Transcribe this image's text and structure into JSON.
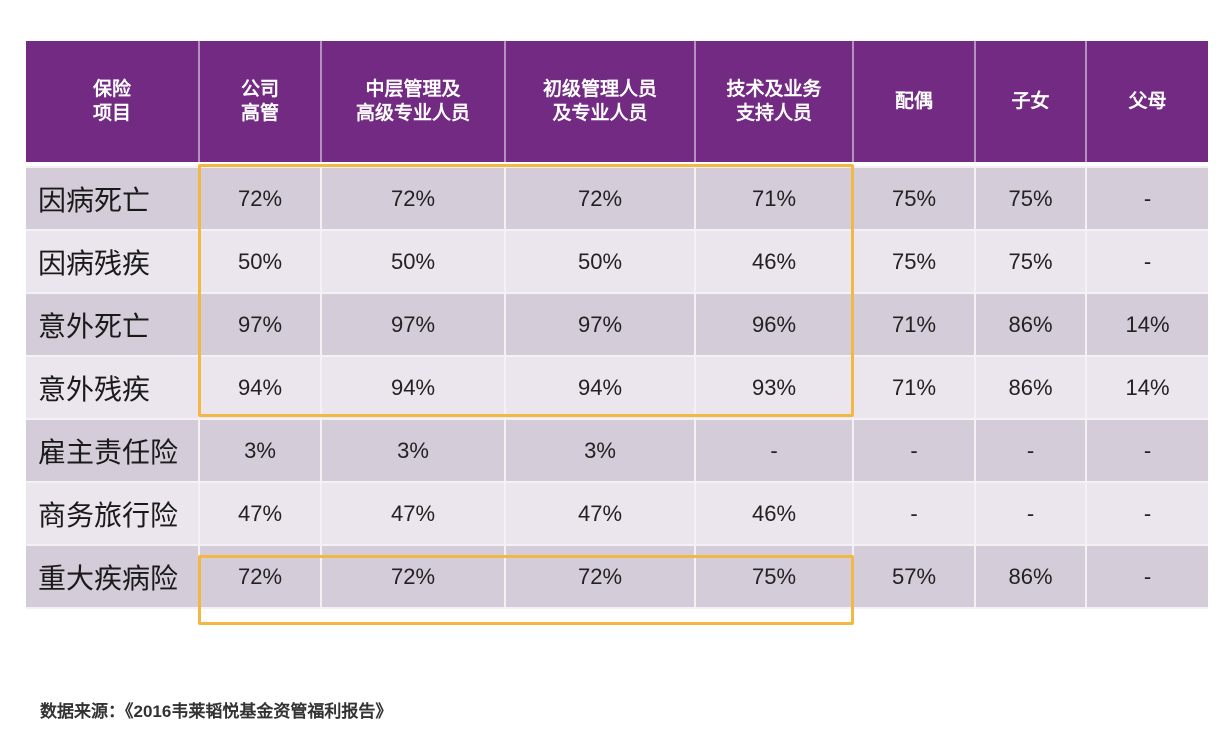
{
  "table": {
    "headers": [
      [
        "保险",
        "项目"
      ],
      [
        "公司",
        "高管"
      ],
      [
        "中层管理及",
        "高级专业人员"
      ],
      [
        "初级管理人员",
        "及专业人员"
      ],
      [
        "技术及业务",
        "支持人员"
      ],
      [
        "配偶"
      ],
      [
        "子女"
      ],
      [
        "父母"
      ]
    ],
    "rows": [
      {
        "label": "因病死亡",
        "values": [
          "72%",
          "72%",
          "72%",
          "71%",
          "75%",
          "75%",
          "-"
        ]
      },
      {
        "label": "因病残疾",
        "values": [
          "50%",
          "50%",
          "50%",
          "46%",
          "75%",
          "75%",
          "-"
        ]
      },
      {
        "label": "意外死亡",
        "values": [
          "97%",
          "97%",
          "97%",
          "96%",
          "71%",
          "86%",
          "14%"
        ]
      },
      {
        "label": "意外残疾",
        "values": [
          "94%",
          "94%",
          "94%",
          "93%",
          "71%",
          "86%",
          "14%"
        ]
      },
      {
        "label": "雇主责任险",
        "values": [
          "3%",
          "3%",
          "3%",
          "-",
          "-",
          "-",
          "-"
        ]
      },
      {
        "label": "商务旅行险",
        "values": [
          "47%",
          "47%",
          "47%",
          "46%",
          "-",
          "-",
          "-"
        ]
      },
      {
        "label": "重大疾病险",
        "values": [
          "72%",
          "72%",
          "72%",
          "75%",
          "57%",
          "86%",
          "-"
        ]
      }
    ]
  },
  "colors": {
    "header_bg": "#722a82",
    "row_dark": "#d5ccd9",
    "row_light": "#ebe6ed",
    "highlight": "#f3b843"
  },
  "footer": {
    "source": "数据来源：《2016韦莱韬悦基金资管福利报告》"
  }
}
